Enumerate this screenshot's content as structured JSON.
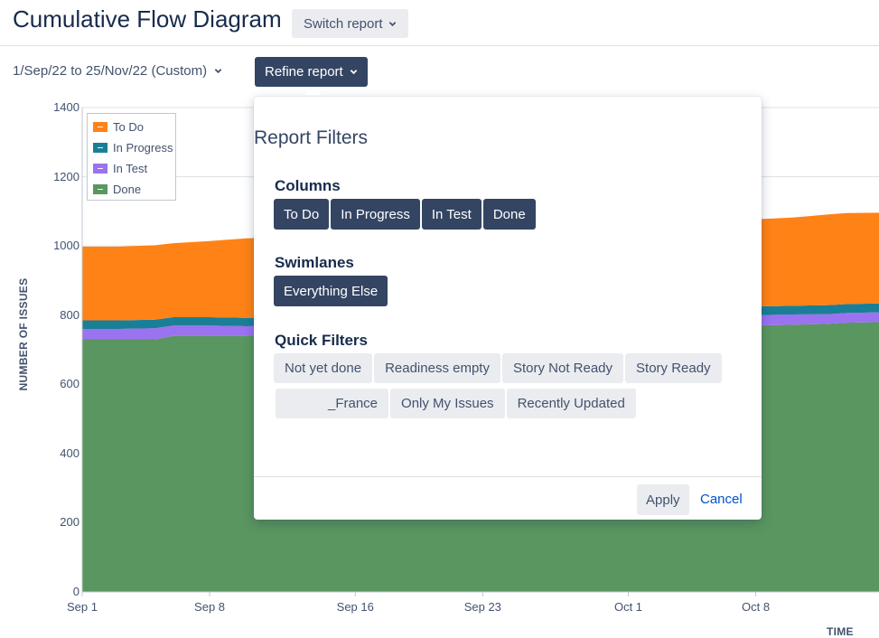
{
  "header": {
    "title": "Cumulative Flow Diagram",
    "switch_report_label": "Switch report",
    "date_range": "1/Sep/22 to 25/Nov/22 (Custom)",
    "refine_report_label": "Refine report"
  },
  "popup": {
    "title": "Report Filters",
    "columns_title": "Columns",
    "columns": [
      "To Do",
      "In Progress",
      "In Test",
      "Done"
    ],
    "swimlanes_title": "Swimlanes",
    "swimlanes": [
      "Everything Else"
    ],
    "quick_filters_title": "Quick Filters",
    "quick_filters_row1": [
      "Not yet done",
      "Readiness empty",
      "Story Not Ready",
      "Story Ready"
    ],
    "quick_filters_row2": [
      "_France",
      "Only My Issues",
      "Recently Updated"
    ],
    "apply_label": "Apply",
    "cancel_label": "Cancel"
  },
  "colors": {
    "todo": "#ff8216",
    "in_progress": "#1a7f96",
    "in_test": "#9b72f0",
    "done": "#5a9660",
    "primary_button": "#344563",
    "link": "#0052cc"
  },
  "chart_data": {
    "type": "area",
    "stacked": true,
    "xlabel": "TIME",
    "ylabel": "NUMBER OF ISSUES",
    "ylim": [
      0,
      1400
    ],
    "y_ticks": [
      "0",
      "200",
      "400",
      "600",
      "800",
      "1000",
      "1200",
      "1400"
    ],
    "x_ticks": [
      "Sep 1",
      "Sep 8",
      "Sep 16",
      "Sep 23",
      "Oct 1",
      "Oct 8"
    ],
    "grid": true,
    "legend_position": "top-left",
    "x": [
      "Sep 1",
      "Sep 3",
      "Sep 5",
      "Sep 6",
      "Sep 8",
      "Sep 10",
      "Sep 12",
      "Oct 4",
      "Oct 6",
      "Oct 8",
      "Oct 10",
      "Oct 12",
      "Oct 13",
      "Oct 15"
    ],
    "series": [
      {
        "name": "Done",
        "values": [
          730,
          730,
          730,
          740,
          740,
          740,
          742,
          765,
          768,
          770,
          772,
          775,
          778,
          780
        ]
      },
      {
        "name": "In Test",
        "values": [
          30,
          30,
          32,
          30,
          30,
          28,
          28,
          28,
          28,
          30,
          30,
          28,
          28,
          28
        ]
      },
      {
        "name": "In Progress",
        "values": [
          25,
          25,
          25,
          24,
          24,
          24,
          24,
          25,
          25,
          25,
          25,
          26,
          26,
          26
        ]
      },
      {
        "name": "To Do",
        "values": [
          213,
          213,
          215,
          214,
          220,
          230,
          232,
          248,
          250,
          252,
          255,
          262,
          263,
          262
        ]
      }
    ]
  }
}
